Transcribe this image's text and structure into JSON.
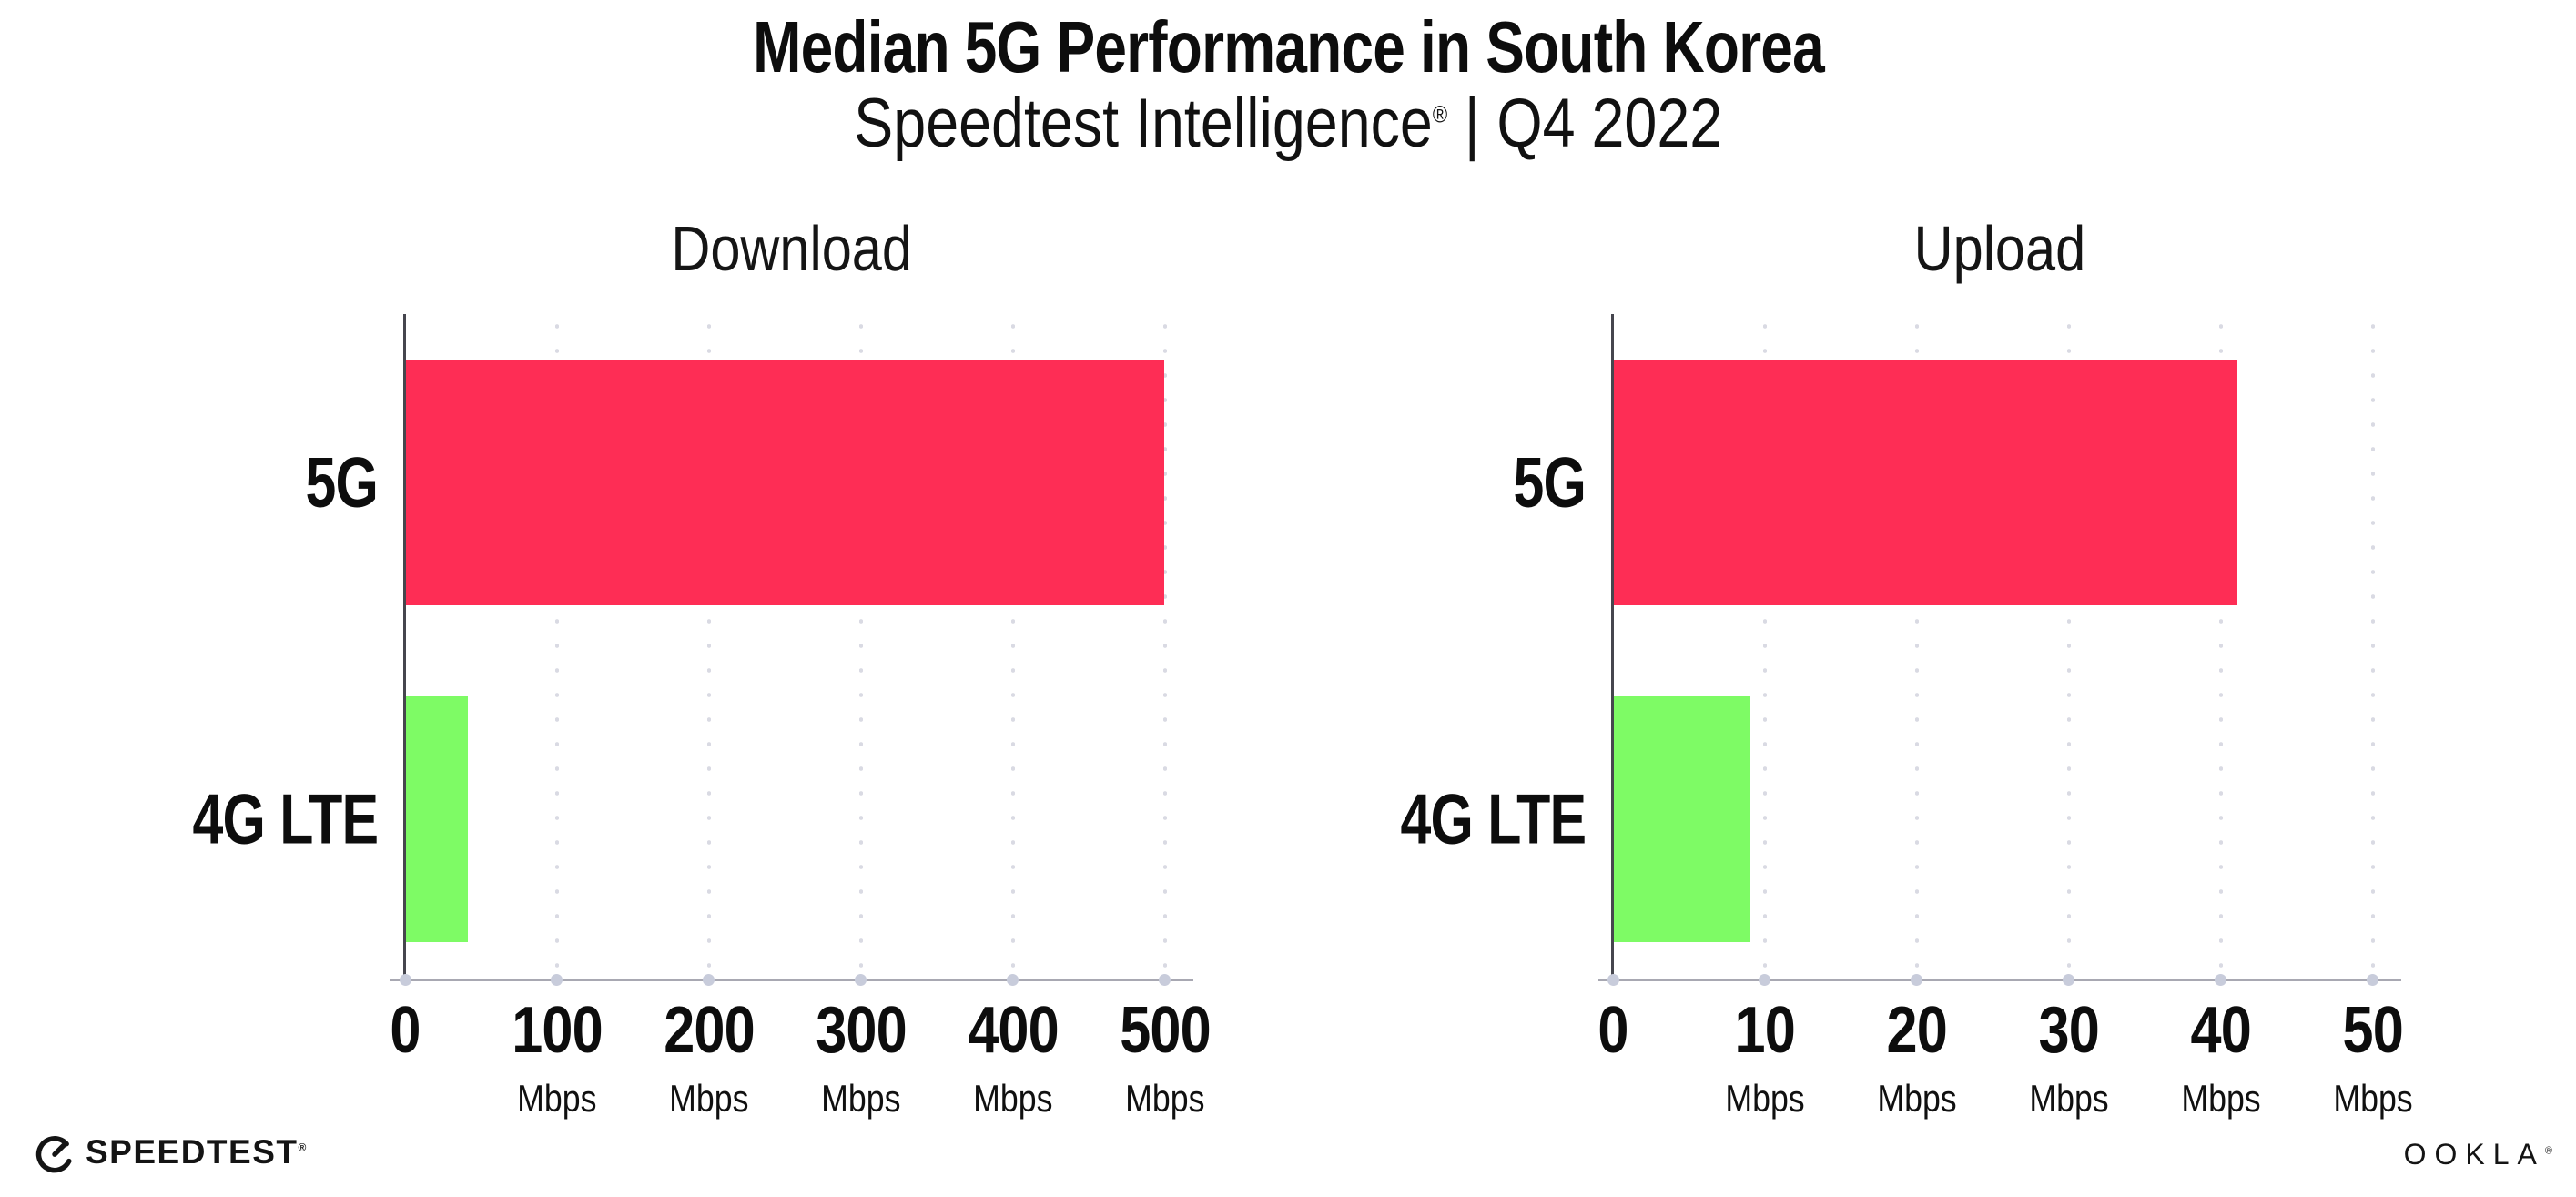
{
  "header": {
    "title": "Median 5G Performance in South Korea",
    "subtitle_brand": "Speedtest Intelligence",
    "subtitle_reg": "®",
    "subtitle_sep": "|",
    "subtitle_period": "Q4 2022"
  },
  "chart_data": [
    {
      "type": "bar",
      "orientation": "horizontal",
      "title": "Download",
      "categories": [
        "5G",
        "4G LTE"
      ],
      "values": [
        499,
        41
      ],
      "unit": "Mbps",
      "xticks": [
        0,
        100,
        200,
        300,
        400,
        500
      ],
      "xlim": [
        0,
        509
      ],
      "colors": [
        "#FE2D55",
        "#7EFB65"
      ],
      "grid": "dotted-vertical",
      "legend": "none"
    },
    {
      "type": "bar",
      "orientation": "horizontal",
      "title": "Upload",
      "categories": [
        "5G",
        "4G LTE"
      ],
      "values": [
        41,
        9
      ],
      "unit": "Mbps",
      "xticks": [
        0,
        10,
        20,
        30,
        40,
        50
      ],
      "xlim": [
        0,
        50.9
      ],
      "colors": [
        "#FE2D55",
        "#7EFB65"
      ],
      "grid": "dotted-vertical",
      "legend": "none"
    }
  ],
  "footer": {
    "speedtest_label": "SPEEDTEST",
    "speedtest_reg": "®",
    "ookla_label": "OOKLA",
    "ookla_reg": "®"
  },
  "colors": {
    "bar_5g": "#FE2D55",
    "bar_4g_lte": "#7EFB65",
    "axis_y": "#46464e",
    "axis_x": "#a8a8b2",
    "gridline_dot": "#d9dae3",
    "text": "#0d0d0d",
    "background": "#ffffff"
  }
}
